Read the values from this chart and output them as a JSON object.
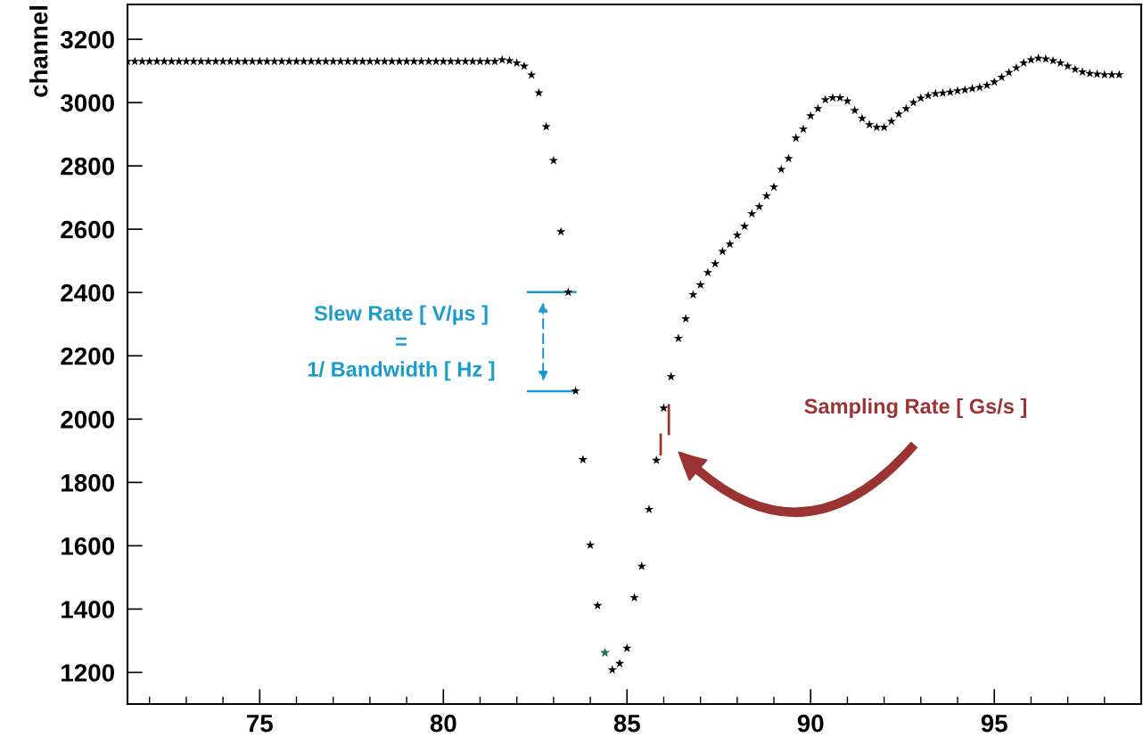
{
  "chart_data": {
    "type": "scatter",
    "ylabel": "channel",
    "xlim": [
      71.4,
      99.0
    ],
    "ylim": [
      1100,
      3310
    ],
    "xticks": [
      75,
      80,
      85,
      90,
      95
    ],
    "yticks": [
      1200,
      1400,
      1600,
      1800,
      2000,
      2200,
      2400,
      2600,
      2800,
      3000,
      3200
    ],
    "marker": "star",
    "grid": false,
    "series": [
      {
        "color": "#000000",
        "x": [
          71.4,
          71.6,
          71.8,
          72.0,
          72.2,
          72.4,
          72.6,
          72.8,
          73.0,
          73.2,
          73.4,
          73.6,
          73.8,
          74.0,
          74.2,
          74.4,
          74.6,
          74.8,
          75.0,
          75.2,
          75.4,
          75.6,
          75.8,
          76.0,
          76.2,
          76.4,
          76.6,
          76.8,
          77.0,
          77.2,
          77.4,
          77.6,
          77.8,
          78.0,
          78.2,
          78.4,
          78.6,
          78.8,
          79.0,
          79.2,
          79.4,
          79.6,
          79.8,
          80.0,
          80.2,
          80.4,
          80.6,
          80.8,
          81.0,
          81.2,
          81.4,
          81.6,
          81.8,
          82.0,
          82.2,
          82.4,
          82.6,
          82.8,
          83.0,
          83.2,
          83.4,
          83.6,
          83.8,
          84.0,
          84.2,
          84.4,
          84.6,
          84.8,
          85.0,
          85.2,
          85.4,
          85.6,
          85.8,
          86.0,
          86.2,
          86.4,
          86.6,
          86.8,
          87.0,
          87.2,
          87.4,
          87.6,
          87.8,
          88.0,
          88.2,
          88.4,
          88.6,
          88.8,
          89.0,
          89.2,
          89.4,
          89.6,
          89.8,
          90.0,
          90.2,
          90.4,
          90.6,
          90.8,
          91.0,
          91.2,
          91.4,
          91.6,
          91.8,
          92.0,
          92.2,
          92.4,
          92.6,
          92.8,
          93.0,
          93.2,
          93.4,
          93.6,
          93.8,
          94.0,
          94.2,
          94.4,
          94.6,
          94.8,
          95.0,
          95.2,
          95.4,
          95.6,
          95.8,
          96.0,
          96.2,
          96.4,
          96.6,
          96.8,
          97.0,
          97.2,
          97.4,
          97.6,
          97.8,
          98.0,
          98.2,
          98.4
        ],
        "values": [
          3130,
          3130,
          3130,
          3130,
          3130,
          3130,
          3130,
          3130,
          3130,
          3130,
          3130,
          3130,
          3130,
          3130,
          3130,
          3130,
          3130,
          3130,
          3130,
          3130,
          3130,
          3130,
          3130,
          3130,
          3130,
          3130,
          3130,
          3130,
          3130,
          3130,
          3130,
          3130,
          3130,
          3130,
          3130,
          3130,
          3130,
          3130,
          3130,
          3130,
          3130,
          3130,
          3130,
          3130,
          3130,
          3130,
          3130,
          3130,
          3130,
          3130,
          3130,
          3135,
          3132,
          3125,
          3115,
          3087,
          3031,
          2924,
          2817,
          2592,
          2401,
          2089,
          1872,
          1602,
          1411,
          1262,
          1208,
          1228,
          1276,
          1436,
          1535,
          1715,
          1870,
          2035,
          2134,
          2255,
          2317,
          2393,
          2424,
          2463,
          2491,
          2530,
          2553,
          2581,
          2609,
          2649,
          2671,
          2705,
          2733,
          2789,
          2823,
          2888,
          2916,
          2958,
          2981,
          3009,
          3015,
          3015,
          3005,
          2975,
          2950,
          2930,
          2922,
          2922,
          2941,
          2964,
          2981,
          3000,
          3014,
          3022,
          3028,
          3030,
          3033,
          3037,
          3040,
          3044,
          3048,
          3055,
          3065,
          3080,
          3095,
          3110,
          3125,
          3135,
          3140,
          3138,
          3132,
          3125,
          3115,
          3105,
          3097,
          3092,
          3090,
          3088,
          3088,
          3088
        ]
      },
      {
        "color": "#1b7a5c",
        "x": [
          84.4
        ],
        "values": [
          1262
        ]
      }
    ],
    "annotations": [
      "Slew Rate [ V/µs ]\n=\n1/ Bandwidth [ Hz ]",
      "Sampling Rate [ Gs/s ]"
    ]
  }
}
